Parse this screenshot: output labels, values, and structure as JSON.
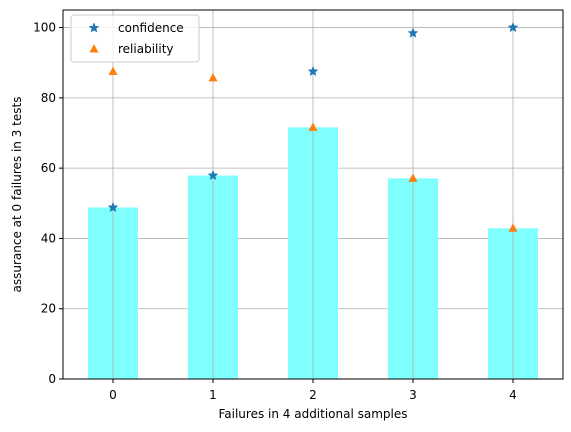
{
  "chart_data": {
    "type": "bar",
    "title": "",
    "xlabel": "Failures in 4 additional samples",
    "ylabel": "assurance at 0 failures in 3 tests",
    "categories": [
      "0",
      "1",
      "2",
      "3",
      "4"
    ],
    "ylim": [
      0,
      105
    ],
    "yticks": [
      0,
      20,
      40,
      60,
      80,
      100
    ],
    "grid": true,
    "legend_position": "top-left",
    "bars": {
      "values": [
        48.8,
        57.9,
        71.6,
        57.1,
        42.9
      ],
      "color": "#80ffff"
    },
    "series": [
      {
        "name": "confidence",
        "marker": "star",
        "color": "#1f77b4",
        "values": [
          48.8,
          57.9,
          87.5,
          98.4,
          100.0
        ]
      },
      {
        "name": "reliability",
        "marker": "triangle",
        "color": "#ff7f0e",
        "values": [
          87.5,
          85.7,
          71.6,
          57.1,
          42.9
        ]
      }
    ]
  }
}
